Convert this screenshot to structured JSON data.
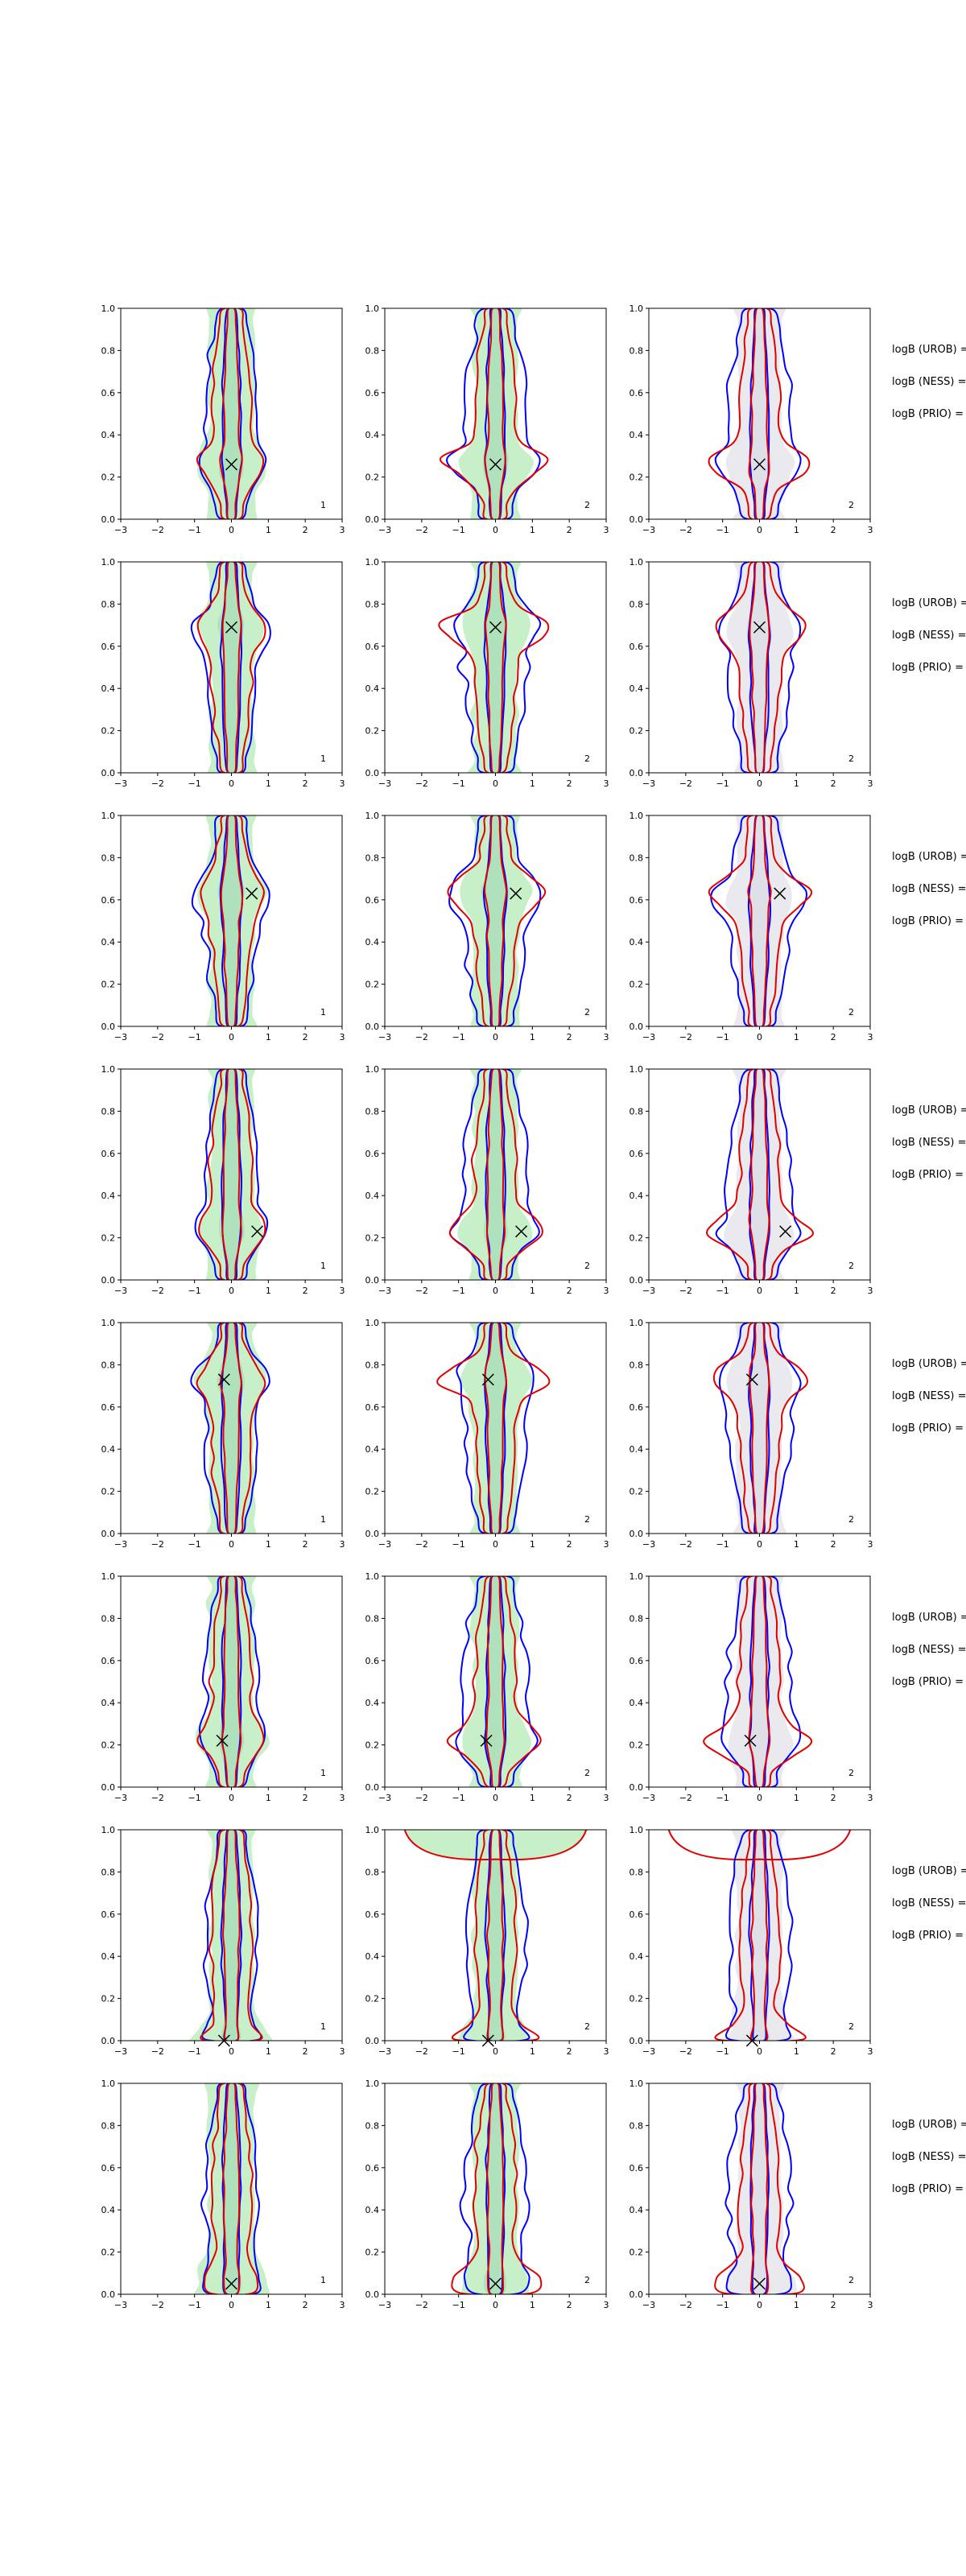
{
  "chart_data": {
    "type": "contour-grid",
    "rows": 8,
    "cols": 3,
    "xlim": [
      -3,
      3
    ],
    "ylim": [
      0,
      1
    ],
    "xticks": [
      "−3",
      "−2",
      "−1",
      "0",
      "1",
      "2",
      "3"
    ],
    "yticks": [
      "0.0",
      "0.2",
      "0.4",
      "0.6",
      "0.8",
      "1.0"
    ],
    "colors": {
      "blue": "#0000ff",
      "red": "#e00000",
      "green_fill": "#c8f0c8",
      "grey_fill": "#e9e9ee",
      "axis": "#000000"
    },
    "column_fill": [
      "green",
      "green",
      "grey"
    ],
    "corner_labels": [
      "1",
      "2",
      "2"
    ],
    "legend_labels": [
      "logB (UROB) =",
      "logB (NESS) =",
      "logB (PRIO) ="
    ],
    "markers": [
      {
        "x": 0.0,
        "y": 0.26
      },
      {
        "x": 0.0,
        "y": 0.69
      },
      {
        "x": 0.55,
        "y": 0.63
      },
      {
        "x": 0.7,
        "y": 0.23
      },
      {
        "x": -0.2,
        "y": 0.73
      },
      {
        "x": -0.25,
        "y": 0.22
      },
      {
        "x": -0.2,
        "y": 0.0
      },
      {
        "x": 0.0,
        "y": 0.05
      }
    ]
  }
}
